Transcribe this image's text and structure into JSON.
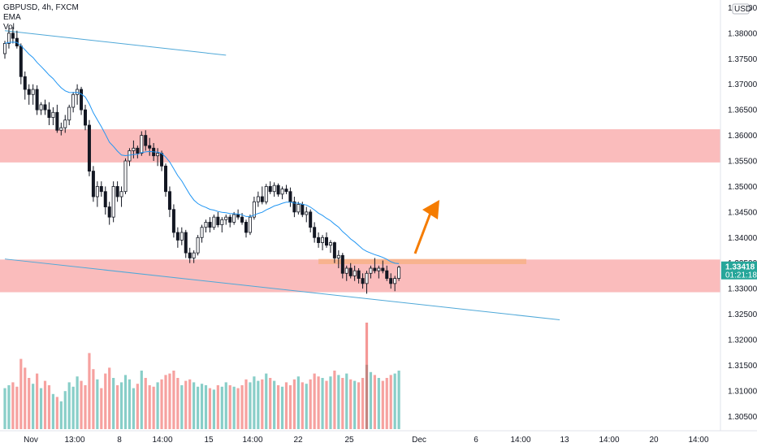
{
  "header": {
    "symbol_line": "GBPUSD, 4h, FXCM",
    "ema_label": "EMA",
    "vol_label": "Vol"
  },
  "price_axis": {
    "currency": "USD",
    "current_price": "1.33418",
    "countdown": "01:21:18",
    "current_color": "#26a69a"
  },
  "colors": {
    "up": "#26a69a",
    "down": "#ef5350",
    "candle_up_fill": "#ffffff",
    "candle_body": "#131722",
    "ema": "#2196f3",
    "trendline": "#4fa8d8",
    "zone": "#f8a5a5",
    "small_zone": "#f7b18a",
    "arrow": "#f57c00"
  },
  "chart_data": {
    "type": "candlestick",
    "symbol": "GBPUSD",
    "timeframe": "4h",
    "yaxis": {
      "ticks": [
        "1.38500",
        "1.38000",
        "1.37500",
        "1.37000",
        "1.36500",
        "1.36000",
        "1.35500",
        "1.35000",
        "1.34500",
        "1.34000",
        "1.33500",
        "1.33000",
        "1.32500",
        "1.32000",
        "1.31500",
        "1.31000",
        "1.30500"
      ],
      "ylim": [
        1.3025,
        1.3865
      ]
    },
    "xaxis": {
      "ticks": [
        "Nov",
        "13:00",
        "8",
        "14:00",
        "15",
        "14:00",
        "22",
        "25",
        "Dec",
        "6",
        "14:00",
        "13",
        "14:00",
        "20",
        "14:00"
      ]
    },
    "zones": [
      {
        "name": "resistance",
        "from": 1.3547,
        "to": 1.3612
      },
      {
        "name": "support",
        "from": 1.3293,
        "to": 1.3357
      },
      {
        "name": "small-box",
        "from": 1.3348,
        "to": 1.3358
      }
    ],
    "trendlines": [
      {
        "from_index": 0,
        "from_price": 1.3805,
        "to_index": 55,
        "to_price": 1.3757
      },
      {
        "from_index": 0,
        "from_price": 1.3358,
        "to_index": 138,
        "to_price": 1.3239
      }
    ],
    "candles": [
      [
        1.376,
        1.3785,
        1.375,
        1.378
      ],
      [
        1.378,
        1.3815,
        1.377,
        1.38
      ],
      [
        1.38,
        1.3812,
        1.378,
        1.379
      ],
      [
        1.379,
        1.3805,
        1.377,
        1.3775
      ],
      [
        1.3775,
        1.378,
        1.37,
        1.3715
      ],
      [
        1.3715,
        1.3725,
        1.367,
        1.369
      ],
      [
        1.369,
        1.37,
        1.366,
        1.368
      ],
      [
        1.368,
        1.37,
        1.366,
        1.369
      ],
      [
        1.369,
        1.3698,
        1.364,
        1.365
      ],
      [
        1.365,
        1.3665,
        1.364,
        1.366
      ],
      [
        1.366,
        1.367,
        1.364,
        1.365
      ],
      [
        1.365,
        1.3665,
        1.362,
        1.3635
      ],
      [
        1.3635,
        1.3655,
        1.362,
        1.3645
      ],
      [
        1.3645,
        1.366,
        1.3605,
        1.361
      ],
      [
        1.361,
        1.3625,
        1.36,
        1.3615
      ],
      [
        1.3615,
        1.364,
        1.3605,
        1.363
      ],
      [
        1.363,
        1.366,
        1.362,
        1.3655
      ],
      [
        1.3655,
        1.3685,
        1.3645,
        1.368
      ],
      [
        1.368,
        1.37,
        1.366,
        1.369
      ],
      [
        1.369,
        1.3695,
        1.364,
        1.365
      ],
      [
        1.365,
        1.366,
        1.361,
        1.362
      ],
      [
        1.362,
        1.363,
        1.352,
        1.353
      ],
      [
        1.353,
        1.354,
        1.347,
        1.348
      ],
      [
        1.348,
        1.351,
        1.346,
        1.35
      ],
      [
        1.35,
        1.351,
        1.348,
        1.349
      ],
      [
        1.349,
        1.35,
        1.3445,
        1.346
      ],
      [
        1.346,
        1.347,
        1.3425,
        1.344
      ],
      [
        1.344,
        1.351,
        1.343,
        1.35
      ],
      [
        1.35,
        1.351,
        1.347,
        1.348
      ],
      [
        1.348,
        1.35,
        1.346,
        1.349
      ],
      [
        1.349,
        1.3555,
        1.3485,
        1.355
      ],
      [
        1.355,
        1.3575,
        1.354,
        1.357
      ],
      [
        1.357,
        1.359,
        1.3555,
        1.3575
      ],
      [
        1.3575,
        1.358,
        1.3555,
        1.3565
      ],
      [
        1.3565,
        1.3608,
        1.356,
        1.36
      ],
      [
        1.36,
        1.361,
        1.357,
        1.358
      ],
      [
        1.358,
        1.3595,
        1.356,
        1.3575
      ],
      [
        1.3575,
        1.3585,
        1.355,
        1.356
      ],
      [
        1.356,
        1.3575,
        1.354,
        1.3565
      ],
      [
        1.3565,
        1.357,
        1.353,
        1.354
      ],
      [
        1.354,
        1.3545,
        1.348,
        1.349
      ],
      [
        1.349,
        1.35,
        1.344,
        1.3455
      ],
      [
        1.3455,
        1.3465,
        1.34,
        1.341
      ],
      [
        1.341,
        1.342,
        1.338,
        1.3395
      ],
      [
        1.3395,
        1.342,
        1.3385,
        1.341
      ],
      [
        1.341,
        1.3415,
        1.336,
        1.337
      ],
      [
        1.337,
        1.338,
        1.335,
        1.336
      ],
      [
        1.336,
        1.3375,
        1.335,
        1.337
      ],
      [
        1.337,
        1.3405,
        1.3365,
        1.34
      ],
      [
        1.34,
        1.3425,
        1.339,
        1.342
      ],
      [
        1.342,
        1.3435,
        1.341,
        1.343
      ],
      [
        1.343,
        1.344,
        1.341,
        1.342
      ],
      [
        1.342,
        1.3445,
        1.3415,
        1.344
      ],
      [
        1.344,
        1.345,
        1.342,
        1.3425
      ],
      [
        1.3425,
        1.344,
        1.341,
        1.3435
      ],
      [
        1.3435,
        1.3445,
        1.3425,
        1.344
      ],
      [
        1.344,
        1.3445,
        1.342,
        1.343
      ],
      [
        1.343,
        1.345,
        1.3425,
        1.3445
      ],
      [
        1.3445,
        1.3455,
        1.3435,
        1.344
      ],
      [
        1.344,
        1.3448,
        1.3425,
        1.343
      ],
      [
        1.343,
        1.3435,
        1.34,
        1.341
      ],
      [
        1.341,
        1.3445,
        1.3405,
        1.344
      ],
      [
        1.344,
        1.348,
        1.3435,
        1.347
      ],
      [
        1.347,
        1.349,
        1.346,
        1.348
      ],
      [
        1.348,
        1.35,
        1.3465,
        1.347
      ],
      [
        1.347,
        1.3505,
        1.3465,
        1.35
      ],
      [
        1.35,
        1.351,
        1.3485,
        1.349
      ],
      [
        1.349,
        1.3508,
        1.348,
        1.3502
      ],
      [
        1.3502,
        1.3506,
        1.348,
        1.3485
      ],
      [
        1.3485,
        1.35,
        1.3475,
        1.3495
      ],
      [
        1.3495,
        1.3503,
        1.3485,
        1.349
      ],
      [
        1.349,
        1.3498,
        1.346,
        1.347
      ],
      [
        1.347,
        1.348,
        1.344,
        1.345
      ],
      [
        1.345,
        1.347,
        1.3445,
        1.3465
      ],
      [
        1.3465,
        1.347,
        1.344,
        1.3445
      ],
      [
        1.3445,
        1.346,
        1.343,
        1.345
      ],
      [
        1.345,
        1.3455,
        1.341,
        1.342
      ],
      [
        1.342,
        1.343,
        1.339,
        1.34
      ],
      [
        1.34,
        1.341,
        1.338,
        1.339
      ],
      [
        1.339,
        1.3405,
        1.3375,
        1.34
      ],
      [
        1.34,
        1.341,
        1.338,
        1.3385
      ],
      [
        1.3385,
        1.3395,
        1.337,
        1.339
      ],
      [
        1.339,
        1.3392,
        1.335,
        1.336
      ],
      [
        1.336,
        1.3375,
        1.334,
        1.3365
      ],
      [
        1.3365,
        1.337,
        1.332,
        1.333
      ],
      [
        1.333,
        1.3345,
        1.3315,
        1.334
      ],
      [
        1.334,
        1.335,
        1.332,
        1.3325
      ],
      [
        1.3325,
        1.3345,
        1.3315,
        1.3335
      ],
      [
        1.3335,
        1.334,
        1.331,
        1.332
      ],
      [
        1.332,
        1.333,
        1.33,
        1.331
      ],
      [
        1.331,
        1.3335,
        1.329,
        1.333
      ],
      [
        1.333,
        1.3345,
        1.332,
        1.334
      ],
      [
        1.334,
        1.336,
        1.333,
        1.3335
      ],
      [
        1.3335,
        1.3345,
        1.332,
        1.334
      ],
      [
        1.334,
        1.3355,
        1.333,
        1.3335
      ],
      [
        1.3335,
        1.3345,
        1.3315,
        1.332
      ],
      [
        1.332,
        1.333,
        1.33,
        1.331
      ],
      [
        1.331,
        1.3325,
        1.3295,
        1.332
      ],
      [
        1.332,
        1.3345,
        1.3315,
        1.3342
      ]
    ],
    "volume": [
      140,
      150,
      160,
      145,
      240,
      210,
      175,
      155,
      190,
      140,
      165,
      150,
      120,
      110,
      95,
      130,
      160,
      145,
      180,
      165,
      150,
      260,
      205,
      170,
      140,
      190,
      210,
      175,
      150,
      160,
      185,
      170,
      140,
      155,
      200,
      175,
      150,
      145,
      160,
      170,
      185,
      190,
      200,
      175,
      150,
      165,
      170,
      160,
      145,
      155,
      150,
      140,
      135,
      150,
      145,
      160,
      150,
      145,
      140,
      150,
      170,
      160,
      180,
      165,
      170,
      190,
      175,
      165,
      150,
      145,
      160,
      150,
      170,
      180,
      160,
      155,
      170,
      190,
      180,
      175,
      165,
      180,
      200,
      185,
      175,
      190,
      170,
      165,
      160,
      175,
      220,
      195,
      185,
      175,
      165,
      175,
      185,
      190,
      200
    ],
    "spike_volume": 455
  }
}
